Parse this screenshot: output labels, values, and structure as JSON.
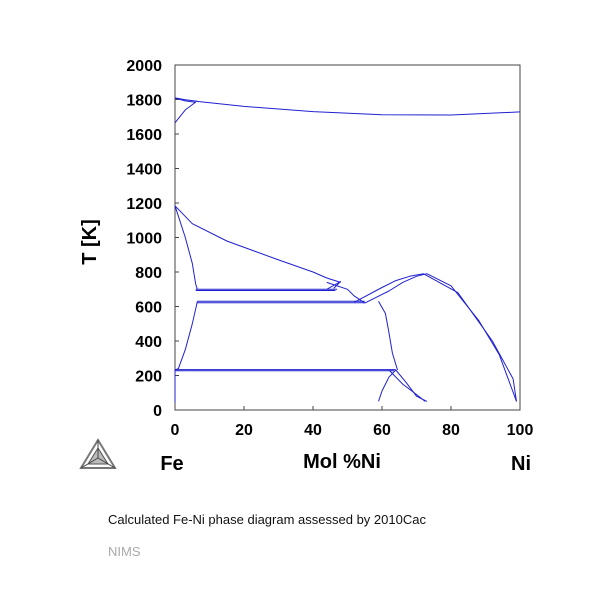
{
  "chart_data": {
    "type": "line",
    "title": "",
    "xlabel": "Mol %Ni",
    "ylabel": "T [K]",
    "xlim": [
      0,
      100
    ],
    "ylim": [
      0,
      2000
    ],
    "x_ticks": [
      0,
      20,
      40,
      60,
      80,
      100
    ],
    "y_ticks": [
      0,
      200,
      400,
      600,
      800,
      1000,
      1200,
      1400,
      1600,
      1800,
      2000
    ],
    "left_end_label": "Fe",
    "right_end_label": "Ni",
    "line_color": "#2020d0",
    "grid": false,
    "series": [
      {
        "x": [
          0,
          3,
          6.5
        ],
        "y": [
          1809,
          1798,
          1790
        ]
      },
      {
        "x": [
          0,
          3,
          6
        ],
        "y": [
          1665,
          1740,
          1785
        ]
      },
      {
        "x": [
          6,
          20,
          40,
          60,
          80,
          100
        ],
        "y": [
          1790,
          1760,
          1730,
          1712,
          1710,
          1728
        ]
      },
      {
        "x": [
          0,
          3,
          6
        ],
        "y": [
          1808,
          1792,
          1783
        ]
      },
      {
        "x": [
          0,
          5,
          15,
          30,
          40,
          44,
          48
        ],
        "y": [
          1184,
          1080,
          980,
          870,
          800,
          765,
          740
        ]
      },
      {
        "x": [
          0,
          3,
          5,
          6,
          6.5
        ],
        "y": [
          1184,
          1000,
          850,
          730,
          700
        ]
      },
      {
        "x": [
          6.5,
          5,
          3,
          1,
          0
        ],
        "y": [
          630,
          500,
          350,
          240,
          232
        ]
      },
      {
        "x": [
          6,
          47
        ],
        "y": [
          700,
          700
        ]
      },
      {
        "x": [
          6,
          46.5
        ],
        "y": [
          693,
          693
        ]
      },
      {
        "x": [
          44,
          48,
          46
        ],
        "y": [
          700,
          745,
          705
        ]
      },
      {
        "x": [
          6.5,
          55
        ],
        "y": [
          630,
          630
        ]
      },
      {
        "x": [
          6.5,
          55
        ],
        "y": [
          622,
          622
        ]
      },
      {
        "x": [
          44,
          50,
          52,
          55
        ],
        "y": [
          740,
          700,
          660,
          620
        ]
      },
      {
        "x": [
          52,
          60,
          64,
          68,
          72
        ],
        "y": [
          625,
          710,
          750,
          775,
          790
        ]
      },
      {
        "x": [
          55,
          62,
          66,
          70,
          73
        ],
        "y": [
          620,
          690,
          740,
          775,
          790
        ]
      },
      {
        "x": [
          59,
          61,
          62,
          63,
          64.5
        ],
        "y": [
          630,
          560,
          450,
          330,
          232
        ]
      },
      {
        "x": [
          0,
          64
        ],
        "y": [
          234,
          234
        ]
      },
      {
        "x": [
          0,
          63.5
        ],
        "y": [
          228,
          228
        ]
      },
      {
        "x": [
          64,
          67,
          70,
          73
        ],
        "y": [
          232,
          160,
          80,
          50
        ]
      },
      {
        "x": [
          62,
          66,
          70,
          72.5
        ],
        "y": [
          232,
          150,
          90,
          50
        ]
      },
      {
        "x": [
          64,
          62,
          60,
          59
        ],
        "y": [
          232,
          190,
          110,
          50
        ]
      },
      {
        "x": [
          73,
          80,
          88,
          94,
          99
        ],
        "y": [
          790,
          720,
          520,
          320,
          50
        ]
      },
      {
        "x": [
          72,
          82,
          92,
          98,
          99
        ],
        "y": [
          790,
          680,
          400,
          180,
          50
        ]
      },
      {
        "x": [
          0,
          0
        ],
        "y": [
          232,
          45
        ]
      }
    ]
  },
  "caption": "Calculated Fe-Ni phase diagram assessed by 2010Cac",
  "credit": "NIMS",
  "logo_icon": "thermo-calc-triangle-icon"
}
